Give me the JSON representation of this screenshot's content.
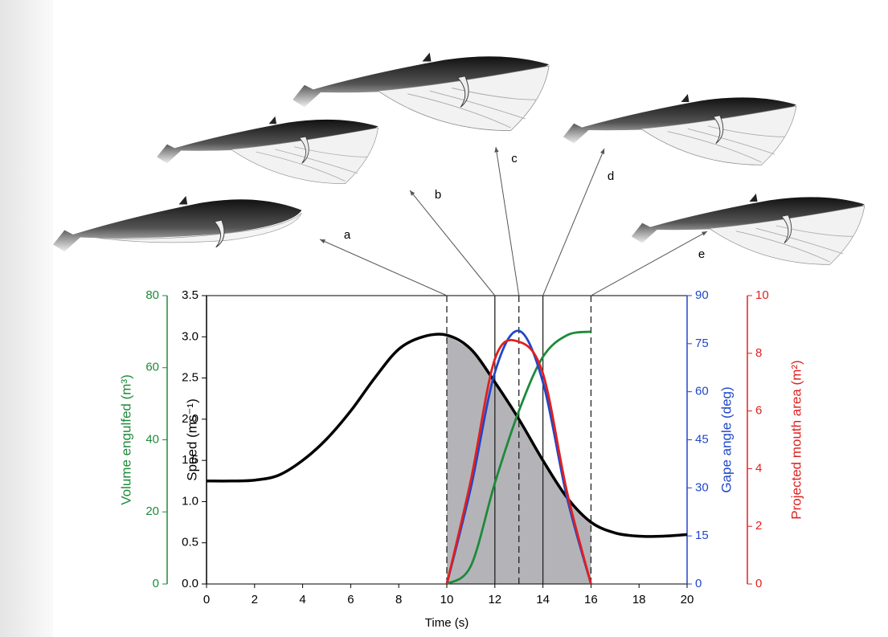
{
  "chart_data": {
    "type": "line",
    "xlabel": "Time (s)",
    "xlim": [
      0,
      20
    ],
    "xticks": [
      0,
      2,
      4,
      6,
      8,
      10,
      12,
      14,
      16,
      18,
      20
    ],
    "shade": [
      10,
      16
    ],
    "events": [
      {
        "x": 10,
        "label": "a",
        "dashed": true
      },
      {
        "x": 12,
        "label": "b",
        "dashed": false
      },
      {
        "x": 13,
        "label": "c",
        "dashed": true
      },
      {
        "x": 14,
        "label": "d",
        "dashed": false
      },
      {
        "x": 16,
        "label": "e",
        "dashed": true
      }
    ],
    "series": [
      {
        "name": "Speed (ms⁻¹)",
        "color": "#000000",
        "x": [
          0,
          1,
          2,
          3,
          4,
          5,
          6,
          7,
          8,
          9,
          10,
          11,
          12,
          13,
          14,
          15,
          16,
          17,
          18,
          19,
          20
        ],
        "values": [
          1.25,
          1.25,
          1.26,
          1.32,
          1.5,
          1.76,
          2.1,
          2.5,
          2.85,
          3.0,
          3.02,
          2.85,
          2.45,
          2.0,
          1.5,
          1.05,
          0.75,
          0.62,
          0.58,
          0.58,
          0.6
        ],
        "ylim": [
          0,
          3.5
        ],
        "yticks": [
          {
            "value": 0,
            "label": "0.0"
          },
          0.5,
          {
            "value": 1,
            "label": "1.0"
          },
          1.5,
          {
            "value": 2,
            "label": "2.0"
          },
          2.5,
          {
            "value": 3,
            "label": "3.0"
          },
          3.5
        ]
      },
      {
        "name": "Volume engulfed (m³)",
        "color": "#1e8a3a",
        "x": [
          10,
          11,
          12,
          13,
          14,
          15,
          16
        ],
        "values": [
          0,
          5,
          28,
          48,
          63,
          69,
          70
        ],
        "ylim": [
          0,
          80
        ],
        "yticks": [
          0,
          20,
          40,
          60,
          80
        ]
      },
      {
        "name": "Gape angle (deg)",
        "color": "#2046c8",
        "x": [
          10,
          11,
          12,
          13,
          14,
          15,
          16
        ],
        "values": [
          0,
          30,
          66,
          79,
          63,
          27,
          0
        ],
        "ylim": [
          0,
          90
        ],
        "yticks": [
          0,
          15,
          30,
          45,
          60,
          75,
          90
        ]
      },
      {
        "name": "Projected mouth area (m²)",
        "color": "#e02020",
        "x": [
          10,
          11,
          12,
          13,
          14,
          15,
          16
        ],
        "values": [
          0,
          3.6,
          7.8,
          8.4,
          7.3,
          3.2,
          0
        ],
        "ylim": [
          0,
          10
        ],
        "yticks": [
          0,
          2,
          4,
          6,
          8,
          10
        ]
      }
    ]
  }
}
